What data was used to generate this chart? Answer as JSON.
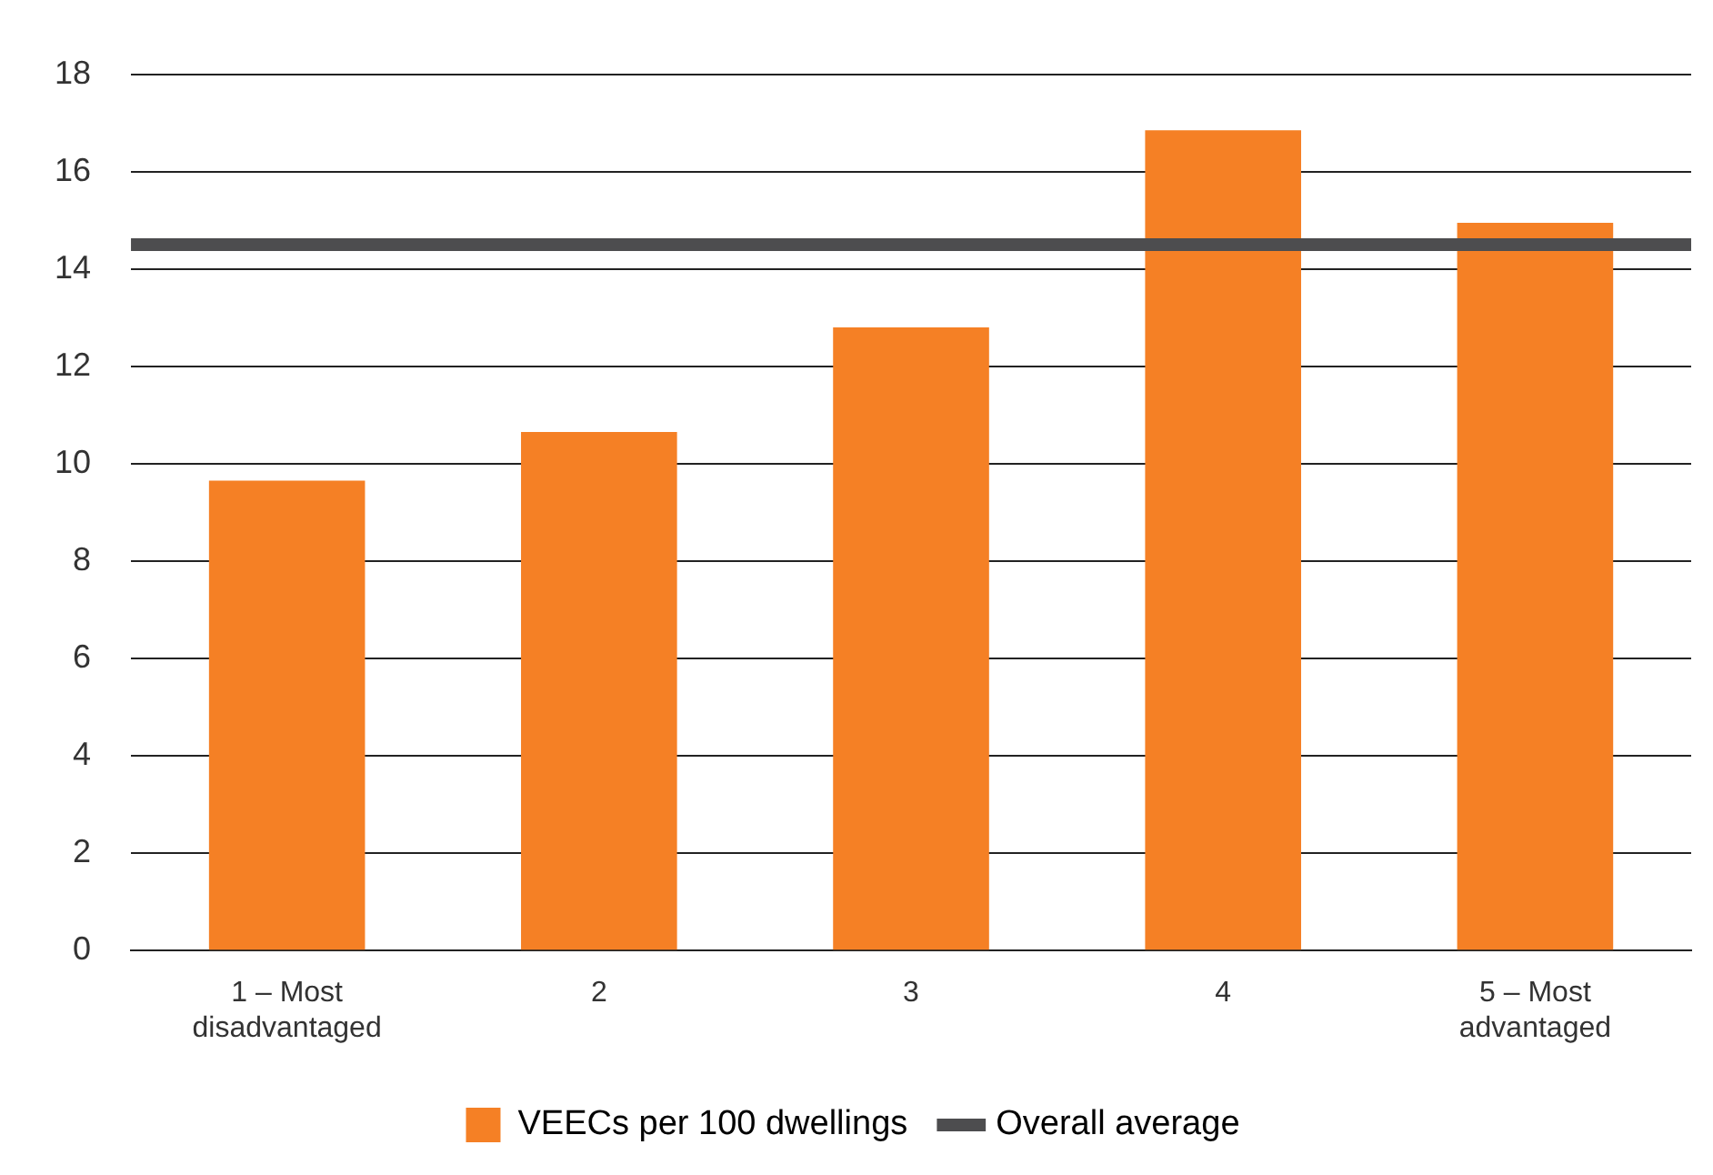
{
  "chart_data": {
    "type": "bar",
    "categories": [
      "1 – Most disadvantaged",
      "2",
      "3",
      "4",
      "5 – Most advantaged"
    ],
    "series": [
      {
        "name": "VEECs per 100 dwellings",
        "color": "#f58025",
        "values": [
          9.65,
          10.65,
          12.8,
          16.85,
          14.95
        ]
      }
    ],
    "ylim": [
      0,
      18
    ],
    "yticks": [
      0,
      2,
      4,
      6,
      8,
      10,
      12,
      14,
      16,
      18
    ],
    "grid": "y",
    "legend": "bottom",
    "ref_lines": [
      {
        "axis": "y",
        "value": 14.5,
        "label": "Overall average",
        "color": "#4d4d4f",
        "line_style": "solid"
      }
    ]
  }
}
